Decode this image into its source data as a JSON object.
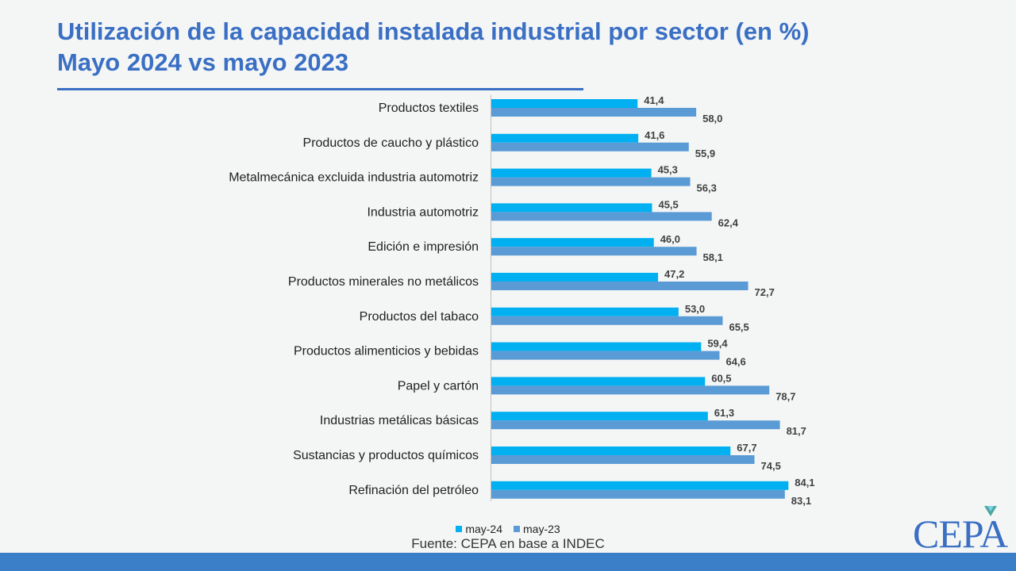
{
  "header": {
    "title_line1": "Utilización de la capacidad instalada industrial por sector (en %)",
    "title_line2": "Mayo 2024 vs mayo 2023"
  },
  "chart_data": {
    "type": "bar",
    "orientation": "horizontal",
    "title": "Utilización de la capacidad instalada industrial por sector (en %) Mayo 2024 vs mayo 2023",
    "categories": [
      "Productos textiles",
      "Productos de caucho y plástico",
      "Metalmecánica excluida industria automotriz",
      "Industria automotriz",
      "Edición e impresión",
      "Productos minerales no metálicos",
      "Productos del tabaco",
      "Productos alimenticios y bebidas",
      "Papel y cartón",
      "Industrias metálicas básicas",
      "Sustancias y productos químicos",
      "Refinación del petróleo"
    ],
    "series": [
      {
        "name": "may-24",
        "color": "#00b0f0",
        "values": [
          41.4,
          41.6,
          45.3,
          45.5,
          46.0,
          47.2,
          53.0,
          59.4,
          60.5,
          61.3,
          67.7,
          84.1
        ],
        "labels": [
          "41,4",
          "41,6",
          "45,3",
          "45,5",
          "46,0",
          "47,2",
          "53,0",
          "59,4",
          "60,5",
          "61,3",
          "67,7",
          "84,1"
        ]
      },
      {
        "name": "may-23",
        "color": "#5b9bd5",
        "values": [
          58.0,
          55.9,
          56.3,
          62.4,
          58.1,
          72.7,
          65.5,
          64.6,
          78.7,
          81.7,
          74.5,
          83.1
        ],
        "labels": [
          "58,0",
          "55,9",
          "56,3",
          "62,4",
          "58,1",
          "72,7",
          "65,5",
          "64,6",
          "78,7",
          "81,7",
          "74,5",
          "83,1"
        ]
      }
    ],
    "xlim": [
      0,
      100
    ],
    "grid": false,
    "legend_position": "bottom"
  },
  "legend": {
    "items": [
      {
        "label": "may-24",
        "color": "#00b0f0"
      },
      {
        "label": "may-23",
        "color": "#5b9bd5"
      }
    ]
  },
  "footer": {
    "source": "Fuente: CEPA en base a INDEC",
    "logo_text": "CEPA"
  }
}
